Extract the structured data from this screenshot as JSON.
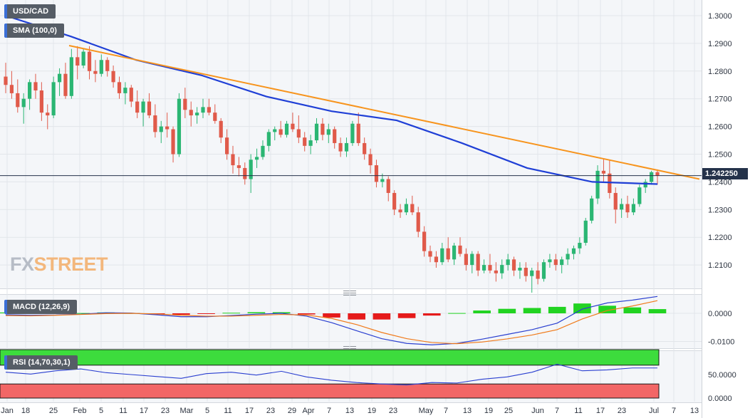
{
  "legends": {
    "pair": "USD/CAD",
    "sma": "SMA (100,0)",
    "macd": "MACD (12,26,9)",
    "rsi": "RSI (14,70,30,1)"
  },
  "current_price": "1.242250",
  "watermark": {
    "part1": "FX",
    "part2": "STREET"
  },
  "colors": {
    "up": "#2bb673",
    "down": "#e05a4a",
    "sma": "#1f3fd6",
    "trend": "#f7941d",
    "macd_line": "#2a3fd0",
    "signal": "#f07a1a",
    "hist_pos": "#22d322",
    "hist_neg": "#e51b1b",
    "rsi_line": "#2a3fd0",
    "overbought": "#3ddc3d",
    "oversold": "#f26666"
  },
  "chart_data": [
    {
      "type": "candlestick",
      "series_name": "USD/CAD",
      "ylim": [
        1.2,
        1.305
      ],
      "y_ticks": [
        "1.3000",
        "1.2900",
        "1.2800",
        "1.2700",
        "1.2600",
        "1.2500",
        "1.2400",
        "1.2300",
        "1.2200",
        "1.2100"
      ],
      "x_ticks": [
        "Jan",
        "18",
        "25",
        "Feb",
        "5",
        "11",
        "17",
        "23",
        "Mar",
        "5",
        "11",
        "17",
        "23",
        "29",
        "Apr",
        "7",
        "13",
        "19",
        "23",
        "May",
        "7",
        "13",
        "19",
        "25",
        "Jun",
        "7",
        "11",
        "17",
        "23",
        "Jul",
        "7",
        "13"
      ],
      "current_price": 1.24225,
      "ohlc": [
        [
          1.278,
          1.283,
          1.272,
          1.275
        ],
        [
          1.275,
          1.28,
          1.27,
          1.272
        ],
        [
          1.272,
          1.277,
          1.265,
          1.267
        ],
        [
          1.267,
          1.272,
          1.261,
          1.27
        ],
        [
          1.27,
          1.277,
          1.266,
          1.276
        ],
        [
          1.276,
          1.279,
          1.27,
          1.273
        ],
        [
          1.273,
          1.276,
          1.262,
          1.265
        ],
        [
          1.265,
          1.268,
          1.259,
          1.264
        ],
        [
          1.264,
          1.278,
          1.263,
          1.276
        ],
        [
          1.276,
          1.281,
          1.271,
          1.279
        ],
        [
          1.279,
          1.283,
          1.27,
          1.271
        ],
        [
          1.271,
          1.288,
          1.27,
          1.285
        ],
        [
          1.285,
          1.289,
          1.277,
          1.282
        ],
        [
          1.282,
          1.288,
          1.281,
          1.287
        ],
        [
          1.287,
          1.289,
          1.277,
          1.28
        ],
        [
          1.28,
          1.284,
          1.276,
          1.279
        ],
        [
          1.279,
          1.286,
          1.278,
          1.284
        ],
        [
          1.284,
          1.285,
          1.278,
          1.28
        ],
        [
          1.28,
          1.282,
          1.274,
          1.276
        ],
        [
          1.276,
          1.278,
          1.27,
          1.272
        ],
        [
          1.272,
          1.276,
          1.268,
          1.274
        ],
        [
          1.274,
          1.275,
          1.267,
          1.269
        ],
        [
          1.269,
          1.273,
          1.263,
          1.265
        ],
        [
          1.265,
          1.27,
          1.26,
          1.269
        ],
        [
          1.269,
          1.272,
          1.263,
          1.264
        ],
        [
          1.264,
          1.268,
          1.256,
          1.258
        ],
        [
          1.258,
          1.262,
          1.254,
          1.26
        ],
        [
          1.26,
          1.265,
          1.256,
          1.259
        ],
        [
          1.259,
          1.26,
          1.247,
          1.25
        ],
        [
          1.25,
          1.272,
          1.249,
          1.27
        ],
        [
          1.27,
          1.274,
          1.263,
          1.266
        ],
        [
          1.266,
          1.269,
          1.26,
          1.264
        ],
        [
          1.264,
          1.267,
          1.261,
          1.265
        ],
        [
          1.265,
          1.27,
          1.263,
          1.267
        ],
        [
          1.267,
          1.27,
          1.264,
          1.265
        ],
        [
          1.265,
          1.268,
          1.261,
          1.262
        ],
        [
          1.262,
          1.263,
          1.254,
          1.256
        ],
        [
          1.256,
          1.259,
          1.248,
          1.25
        ],
        [
          1.25,
          1.253,
          1.243,
          1.246
        ],
        [
          1.246,
          1.249,
          1.242,
          1.245
        ],
        [
          1.245,
          1.247,
          1.239,
          1.241
        ],
        [
          1.241,
          1.25,
          1.236,
          1.248
        ],
        [
          1.248,
          1.252,
          1.245,
          1.249
        ],
        [
          1.249,
          1.255,
          1.248,
          1.253
        ],
        [
          1.253,
          1.259,
          1.251,
          1.258
        ],
        [
          1.258,
          1.26,
          1.255,
          1.259
        ],
        [
          1.259,
          1.262,
          1.256,
          1.257
        ],
        [
          1.257,
          1.262,
          1.256,
          1.261
        ],
        [
          1.261,
          1.265,
          1.258,
          1.259
        ],
        [
          1.259,
          1.264,
          1.254,
          1.256
        ],
        [
          1.256,
          1.258,
          1.251,
          1.253
        ],
        [
          1.253,
          1.257,
          1.25,
          1.255
        ],
        [
          1.255,
          1.263,
          1.254,
          1.261
        ],
        [
          1.261,
          1.263,
          1.255,
          1.257
        ],
        [
          1.257,
          1.261,
          1.254,
          1.259
        ],
        [
          1.259,
          1.26,
          1.252,
          1.254
        ],
        [
          1.254,
          1.256,
          1.249,
          1.251
        ],
        [
          1.251,
          1.256,
          1.249,
          1.254
        ],
        [
          1.254,
          1.262,
          1.253,
          1.261
        ],
        [
          1.261,
          1.265,
          1.253,
          1.254
        ],
        [
          1.254,
          1.256,
          1.248,
          1.25
        ],
        [
          1.25,
          1.252,
          1.243,
          1.246
        ],
        [
          1.246,
          1.248,
          1.238,
          1.24
        ],
        [
          1.24,
          1.243,
          1.238,
          1.241
        ],
        [
          1.241,
          1.242,
          1.233,
          1.236
        ],
        [
          1.236,
          1.237,
          1.228,
          1.23
        ],
        [
          1.23,
          1.232,
          1.227,
          1.229
        ],
        [
          1.229,
          1.234,
          1.228,
          1.232
        ],
        [
          1.232,
          1.235,
          1.228,
          1.229
        ],
        [
          1.229,
          1.231,
          1.22,
          1.222
        ],
        [
          1.222,
          1.224,
          1.213,
          1.215
        ],
        [
          1.215,
          1.217,
          1.211,
          1.213
        ],
        [
          1.213,
          1.215,
          1.209,
          1.211
        ],
        [
          1.211,
          1.218,
          1.21,
          1.216
        ],
        [
          1.216,
          1.22,
          1.211,
          1.212
        ],
        [
          1.212,
          1.218,
          1.21,
          1.217
        ],
        [
          1.217,
          1.22,
          1.213,
          1.214
        ],
        [
          1.214,
          1.216,
          1.208,
          1.21
        ],
        [
          1.21,
          1.215,
          1.207,
          1.214
        ],
        [
          1.214,
          1.215,
          1.206,
          1.208
        ],
        [
          1.208,
          1.212,
          1.207,
          1.21
        ],
        [
          1.21,
          1.214,
          1.207,
          1.208
        ],
        [
          1.208,
          1.211,
          1.204,
          1.207
        ],
        [
          1.207,
          1.212,
          1.205,
          1.21
        ],
        [
          1.21,
          1.214,
          1.208,
          1.212
        ],
        [
          1.212,
          1.213,
          1.206,
          1.208
        ],
        [
          1.208,
          1.211,
          1.205,
          1.209
        ],
        [
          1.209,
          1.211,
          1.204,
          1.206
        ],
        [
          1.206,
          1.209,
          1.2,
          1.208
        ],
        [
          1.208,
          1.211,
          1.203,
          1.205
        ],
        [
          1.205,
          1.212,
          1.204,
          1.211
        ],
        [
          1.211,
          1.214,
          1.209,
          1.212
        ],
        [
          1.212,
          1.214,
          1.208,
          1.21
        ],
        [
          1.21,
          1.213,
          1.207,
          1.212
        ],
        [
          1.212,
          1.216,
          1.21,
          1.214
        ],
        [
          1.214,
          1.217,
          1.212,
          1.216
        ],
        [
          1.216,
          1.22,
          1.214,
          1.218
        ],
        [
          1.218,
          1.227,
          1.217,
          1.226
        ],
        [
          1.226,
          1.235,
          1.225,
          1.234
        ],
        [
          1.234,
          1.246,
          1.232,
          1.244
        ],
        [
          1.244,
          1.2485,
          1.24,
          1.243
        ],
        [
          1.243,
          1.248,
          1.234,
          1.236
        ],
        [
          1.236,
          1.238,
          1.225,
          1.23
        ],
        [
          1.23,
          1.234,
          1.227,
          1.232
        ],
        [
          1.232,
          1.235,
          1.227,
          1.229
        ],
        [
          1.229,
          1.234,
          1.228,
          1.232
        ],
        [
          1.232,
          1.239,
          1.231,
          1.238
        ],
        [
          1.238,
          1.241,
          1.236,
          1.24
        ],
        [
          1.24,
          1.244,
          1.239,
          1.2435
        ],
        [
          1.2435,
          1.2445,
          1.239,
          1.2423
        ]
      ],
      "sma": [
        1.3,
        1.2925,
        1.284,
        1.2785,
        1.2708,
        1.2655,
        1.2622,
        1.254,
        1.245,
        1.24,
        1.2392
      ],
      "trendline": {
        "start": 1.2892,
        "end": 1.241
      }
    },
    {
      "type": "line",
      "series_name": "MACD (12,26,9)",
      "ylim": [
        -0.0125,
        0.0075
      ],
      "y_ticks": [
        "0.0000",
        "-0.0100"
      ],
      "macd": [
        -0.0005,
        -0.0007,
        -0.0006,
        -0.0003,
        0.0002,
        0.0001,
        -0.0005,
        -0.0012,
        -0.0012,
        -0.0008,
        -0.0003,
        0.0,
        -0.001,
        -0.0033,
        -0.0062,
        -0.009,
        -0.0107,
        -0.0112,
        -0.0107,
        -0.0092,
        -0.0075,
        -0.0058,
        -0.0035,
        0.0015,
        0.0037,
        0.0047,
        0.006
      ],
      "signal": [
        -0.0008,
        -0.0009,
        -0.0007,
        -0.0004,
        -0.0001,
        0.0,
        -0.0002,
        -0.0007,
        -0.001,
        -0.001,
        -0.0007,
        -0.0004,
        -0.0006,
        -0.0018,
        -0.004,
        -0.0068,
        -0.009,
        -0.0104,
        -0.0108,
        -0.0102,
        -0.0091,
        -0.0077,
        -0.0058,
        -0.002,
        0.001,
        0.0026,
        0.0045
      ],
      "histogram": [
        0.0003,
        0.0002,
        0.0001,
        0.0001,
        0.0003,
        0.0001,
        -0.0003,
        -0.0005,
        -0.0002,
        0.0002,
        0.0004,
        0.0004,
        -0.0004,
        -0.0015,
        -0.0022,
        -0.0022,
        -0.0017,
        -0.0008,
        0.0001,
        0.001,
        0.0016,
        0.0019,
        0.0023,
        0.0035,
        0.0027,
        0.0021,
        0.0015
      ]
    },
    {
      "type": "line",
      "series_name": "RSI (14,70,30,1)",
      "ylim": [
        0,
        100
      ],
      "y_ticks": [
        "50.0000",
        "0.0000"
      ],
      "overbought": 70,
      "oversold": 30,
      "rsi": [
        55,
        51,
        58,
        62,
        54,
        50,
        46,
        42,
        52,
        55,
        49,
        57,
        45,
        38,
        33,
        30,
        28,
        33,
        32,
        40,
        45,
        55,
        72,
        58,
        60,
        64,
        64
      ]
    }
  ]
}
